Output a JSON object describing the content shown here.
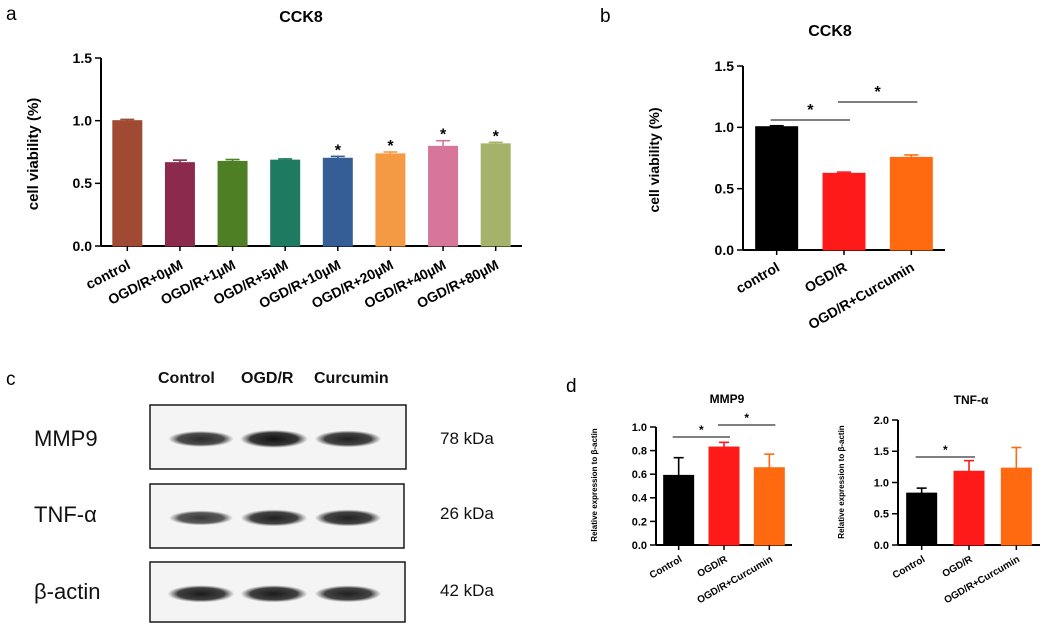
{
  "panels": {
    "a": "a",
    "b": "b",
    "c": "c",
    "d": "d"
  },
  "chart_data": [
    {
      "id": "a",
      "type": "bar",
      "title": "CCK8",
      "ylabel": "cell viability (%)",
      "xlabel": "",
      "ylim": [
        0,
        1.5
      ],
      "yticks": [
        "0.0",
        "0.5",
        "1.0",
        "1.5"
      ],
      "categories": [
        "control",
        "OGD/R+0µM",
        "OGD/R+1µM",
        "OGD/R+5µM",
        "OGD/R+10µM",
        "OGD/R+20µM",
        "OGD/R+40µM",
        "OGD/R+80µM"
      ],
      "values": [
        1.0,
        0.665,
        0.675,
        0.685,
        0.7,
        0.735,
        0.795,
        0.815
      ],
      "errors": [
        0.01,
        0.02,
        0.015,
        0.01,
        0.015,
        0.015,
        0.045,
        0.012
      ],
      "colors": [
        "#a04a34",
        "#8c2a4e",
        "#4f7f24",
        "#1e7b62",
        "#355e96",
        "#f59a44",
        "#d8759a",
        "#a5b36a"
      ],
      "annotations": [
        "",
        "",
        "",
        "",
        "*",
        "*",
        "*",
        "*"
      ]
    },
    {
      "id": "b",
      "type": "bar",
      "title": "CCK8",
      "ylabel": "cell viability (%)",
      "xlabel": "",
      "ylim": [
        0,
        1.5
      ],
      "yticks": [
        "0.0",
        "0.5",
        "1.0",
        "1.5"
      ],
      "categories": [
        "control",
        "OGD/R",
        "OGD/R+Curcumin"
      ],
      "values": [
        1.005,
        0.625,
        0.755
      ],
      "errors": [
        0.008,
        0.01,
        0.02
      ],
      "colors": [
        "#000000",
        "#ff1a1a",
        "#ff6a10"
      ],
      "significance": [
        {
          "from": 0,
          "to": 1,
          "label": "*"
        },
        {
          "from": 1,
          "to": 2,
          "label": "*"
        }
      ]
    },
    {
      "id": "d1",
      "type": "bar",
      "title": "MMP9",
      "ylabel": "Relative expression to β-actin",
      "xlabel": "",
      "ylim": [
        0,
        1.0
      ],
      "yticks": [
        "0.0",
        "0.2",
        "0.4",
        "0.6",
        "0.8",
        "1.0"
      ],
      "categories": [
        "Control",
        "OGD/R",
        "OGD/R+Curcumin"
      ],
      "values": [
        0.59,
        0.83,
        0.655
      ],
      "errors": [
        0.15,
        0.04,
        0.115
      ],
      "colors": [
        "#000000",
        "#ff1a1a",
        "#ff6a10"
      ],
      "significance": [
        {
          "from": 0,
          "to": 1,
          "label": "*"
        },
        {
          "from": 1,
          "to": 2,
          "label": "*"
        }
      ]
    },
    {
      "id": "d2",
      "type": "bar",
      "title": "TNF-α",
      "ylabel": "Relative expression to β-actin",
      "xlabel": "",
      "ylim": [
        0,
        2.0
      ],
      "yticks": [
        "0.0",
        "0.5",
        "1.0",
        "1.5",
        "2.0"
      ],
      "categories": [
        "Control",
        "OGD/R",
        "OGD/R+Curcumin"
      ],
      "values": [
        0.83,
        1.18,
        1.23
      ],
      "errors": [
        0.08,
        0.17,
        0.33
      ],
      "colors": [
        "#000000",
        "#ff1a1a",
        "#ff6a10"
      ],
      "significance": [
        {
          "from": 0,
          "to": 1,
          "label": "*"
        }
      ]
    }
  ],
  "western_blot": {
    "columns": [
      "Control",
      "OGD/R",
      "Curcumin"
    ],
    "rows": [
      {
        "label": "MMP9",
        "kda": "78 kDa",
        "intensities": [
          0.75,
          1.0,
          0.85
        ]
      },
      {
        "label": "TNF-α",
        "kda": "26 kDa",
        "intensities": [
          0.6,
          0.85,
          0.85
        ]
      },
      {
        "label": "β-actin",
        "kda": "42 kDa",
        "intensities": [
          0.9,
          0.9,
          0.85
        ]
      }
    ]
  }
}
